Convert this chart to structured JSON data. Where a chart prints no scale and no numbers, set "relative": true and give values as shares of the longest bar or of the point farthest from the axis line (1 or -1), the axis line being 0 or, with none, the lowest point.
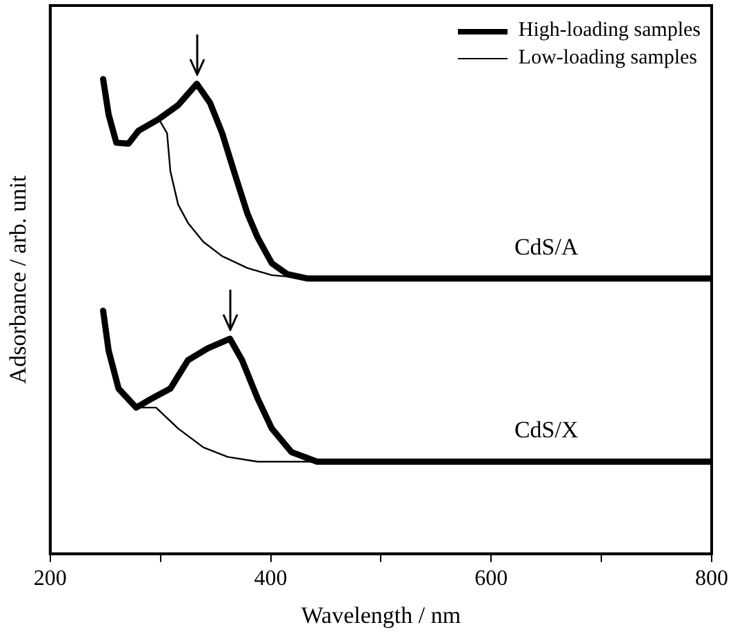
{
  "chart_data": {
    "type": "line",
    "xlabel": "Wavelength / nm",
    "ylabel": "Adsorbance / arb. unit",
    "relative": true,
    "grid": false,
    "legend": "top right",
    "marker": "none",
    "line_style": "solid",
    "xlim": [
      200,
      800
    ],
    "xticks": [
      200,
      {
        "value": 300,
        "label": null
      },
      400,
      {
        "value": 500,
        "label": null
      },
      600,
      {
        "value": 700,
        "label": null
      },
      800
    ],
    "series": [
      {
        "name": "High-loading samples",
        "color": "#000000",
        "x": [
          248,
          253,
          260,
          271,
          280,
          298,
          316,
          333,
          345,
          356,
          368,
          379,
          388,
          401,
          415,
          433,
          800
        ],
        "values": [
          1.0,
          0.925,
          0.866,
          0.864,
          0.891,
          0.915,
          0.945,
          0.99,
          0.95,
          0.886,
          0.796,
          0.716,
          0.667,
          0.612,
          0.589,
          0.58,
          0.58
        ]
      },
      {
        "name": "Low-loading samples",
        "color": "#000000",
        "x": [
          248,
          253,
          260,
          271,
          280,
          298,
          300,
          306,
          309,
          316,
          325,
          339,
          356,
          379,
          401,
          433,
          800
        ],
        "values": [
          1.0,
          0.925,
          0.866,
          0.864,
          0.891,
          0.915,
          0.91,
          0.886,
          0.806,
          0.736,
          0.697,
          0.657,
          0.627,
          0.602,
          0.587,
          0.58,
          0.58
        ]
      },
      {
        "color": "#000000",
        "x": [
          248,
          253,
          262,
          278,
          289,
          309,
          325,
          343,
          363,
          374,
          388,
          401,
          419,
          442,
          800
        ],
        "values": [
          0.512,
          0.428,
          0.348,
          0.308,
          0.323,
          0.348,
          0.408,
          0.433,
          0.453,
          0.408,
          0.328,
          0.264,
          0.214,
          0.194,
          0.194
        ]
      },
      {
        "color": "#000000",
        "x": [
          248,
          253,
          262,
          278,
          296,
          316,
          339,
          361,
          388,
          800
        ],
        "values": [
          0.512,
          0.428,
          0.348,
          0.308,
          0.308,
          0.264,
          0.224,
          0.204,
          0.194,
          0.194
        ]
      }
    ],
    "annotations": [
      "CdS/A",
      "CdS/X"
    ]
  }
}
